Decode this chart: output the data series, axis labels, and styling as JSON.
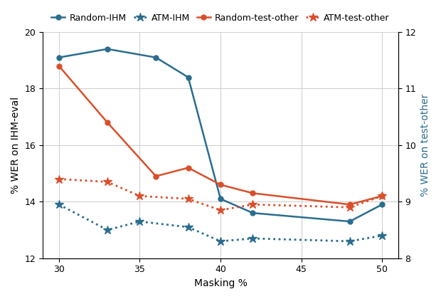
{
  "x": [
    30,
    33,
    35,
    36,
    38,
    40,
    42,
    45,
    48,
    50
  ],
  "random_ihm": [
    19.1,
    19.4,
    null,
    19.1,
    18.4,
    14.1,
    13.6,
    null,
    13.3,
    13.9
  ],
  "atm_ihm": [
    13.9,
    13.0,
    13.3,
    null,
    13.1,
    12.6,
    12.7,
    null,
    12.6,
    12.8
  ],
  "random_test_other": [
    18.8,
    16.8,
    null,
    14.9,
    15.2,
    14.6,
    14.3,
    null,
    13.9,
    14.2
  ],
  "atm_test_other": [
    14.8,
    14.7,
    14.2,
    null,
    14.1,
    13.7,
    13.9,
    null,
    13.8,
    14.2
  ],
  "color_blue": "#2a6d8f",
  "color_red": "#d94f2b",
  "xlabel": "Masking %",
  "ylabel_left": "% WER on IHM-eval",
  "ylabel_right": "% WER on test-other",
  "ylim_left": [
    12,
    20
  ],
  "ylim_right": [
    8,
    12
  ],
  "xlim": [
    29,
    51
  ],
  "xticks": [
    30,
    35,
    40,
    45,
    50
  ],
  "yticks_left": [
    12,
    14,
    16,
    18,
    20
  ],
  "yticks_right": [
    8,
    9,
    10,
    11,
    12
  ],
  "legend_labels": [
    "Random-IHM",
    "ATM-IHM",
    "Random-test-other",
    "ATM-test-other"
  ],
  "axis_fontsize": 10,
  "legend_fontsize": 9,
  "tick_fontsize": 9,
  "background_color": "#ffffff",
  "grid_color": "#d0d0d0"
}
